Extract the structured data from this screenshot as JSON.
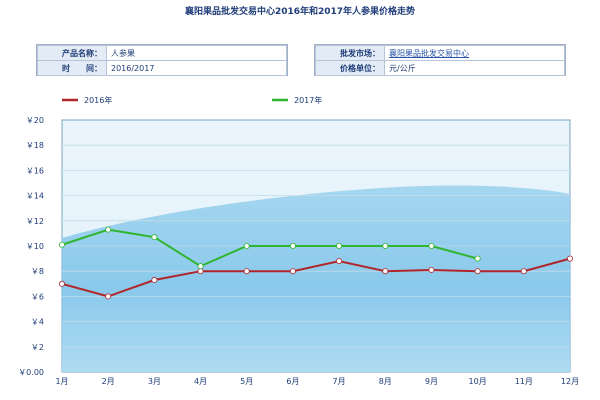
{
  "page": {
    "title": "襄阳果品批发交易中心2016年和2017年人参果价格走势"
  },
  "info": {
    "product_label": "产品名称：",
    "product_value": "人参果",
    "time_label": "时　　间：",
    "time_value": "2016/2017",
    "market_label": "批发市场：",
    "market_value": "襄阳果品批发交易中心",
    "unit_label": "价格单位：",
    "unit_value": "元/公斤"
  },
  "chart_data": {
    "type": "line",
    "categories": [
      "1月",
      "2月",
      "3月",
      "4月",
      "5月",
      "6月",
      "7月",
      "8月",
      "9月",
      "10月",
      "11月",
      "12月"
    ],
    "series": [
      {
        "name": "2016年",
        "color": "#b0262a",
        "values": [
          7,
          6,
          7.3,
          8,
          8,
          8,
          8.8,
          8,
          8.1,
          8,
          8,
          9
        ]
      },
      {
        "name": "2017年",
        "color": "#2fb52f",
        "values": [
          10.1,
          11.3,
          10.7,
          8.4,
          10,
          10,
          10,
          10,
          10,
          9,
          null,
          null
        ]
      }
    ],
    "y_ticks": [
      "￥0.00",
      "￥2",
      "￥4",
      "￥6",
      "￥8",
      "￥10",
      "￥12",
      "￥14",
      "￥16",
      "￥18",
      "￥20"
    ],
    "ylim": [
      0,
      20
    ],
    "legend_position": "top-left",
    "grid": true
  }
}
